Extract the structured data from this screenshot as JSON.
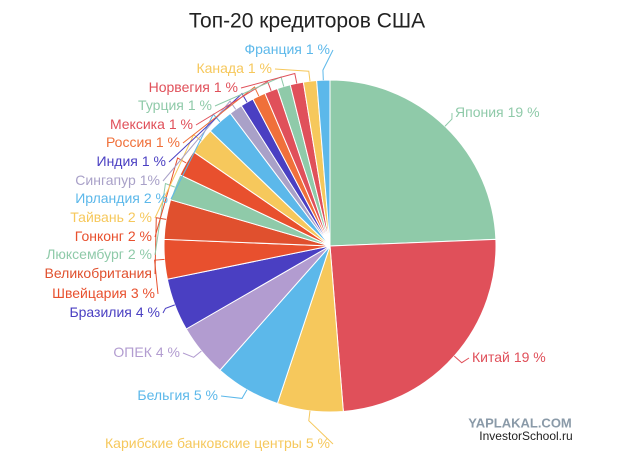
{
  "chart_data": {
    "type": "pie",
    "title": "Топ-20 кредиторов США",
    "categories": [
      "Япония",
      "Китай",
      "Карибские банковские центры",
      "Бельгия",
      "ОПЕК",
      "Бразилия",
      "Швейцария",
      "Великобритания",
      "Люксембург",
      "Гонконг",
      "Тайвань",
      "Ирландия",
      "Сингапур",
      "Индия",
      "Россия",
      "Мексика",
      "Турция",
      "Норвегия",
      "Канада",
      "Франция"
    ],
    "values": [
      19,
      19,
      5,
      5,
      4,
      4,
      3,
      3,
      2,
      2,
      2,
      2,
      1,
      1,
      1,
      1,
      1,
      1,
      1,
      1
    ],
    "value_labels": [
      "19 %",
      "19 %",
      "5 %",
      "5 %",
      "4 %",
      "4 %",
      "3 %",
      null,
      "2 %",
      "2 %",
      "2 %",
      "2 %",
      "1%",
      "1 %",
      "1 %",
      "1 %",
      "1 %",
      "1 %",
      "1 %",
      "1 %"
    ],
    "colors": [
      "#8fcaa9",
      "#e0505a",
      "#f6c85c",
      "#5cb8ea",
      "#b29cd0",
      "#4a3fc2",
      "#e8502e",
      "#e0502e",
      "#8fcaa9",
      "#e8502e",
      "#f6c85c",
      "#5cb8ea",
      "#a9a1c8",
      "#4a3fc2",
      "#f0703a",
      "#e0505a",
      "#8fcaa9",
      "#e0505a",
      "#f6c85c",
      "#5cb8ea"
    ]
  },
  "watermarks": [
    "YAPLAKAL.COM",
    "InvestorSchool.ru"
  ]
}
